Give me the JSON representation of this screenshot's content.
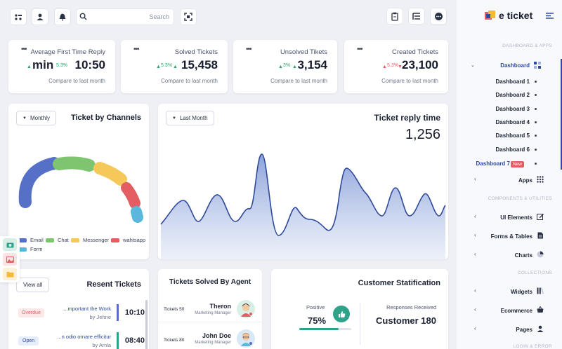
{
  "topbar": {
    "search_placeholder": "Search"
  },
  "brand": {
    "name": "e ticket"
  },
  "stats": [
    {
      "title": "Average First Time Reply",
      "value_prefix": "min",
      "value": "10:50",
      "change": "5.3%",
      "direction": "up",
      "compare": "Compare to last month"
    },
    {
      "title": "Solved Tickets",
      "value": "15,458",
      "change": "5.3%",
      "direction": "up",
      "compare": "Compare to last month"
    },
    {
      "title": "Unsolved Tikets",
      "value": "3,154",
      "change": "3%",
      "direction": "up",
      "compare": "Compare to last month"
    },
    {
      "title": "Created Tickets",
      "value": "23,100",
      "change": "5.3%",
      "direction": "down",
      "compare": "Compare to last month"
    }
  ],
  "channels": {
    "filter": "Monthly",
    "title": "Ticket by Channels",
    "legend": [
      "Email",
      "Chat",
      "Messenger",
      "wahtsapp",
      "Form"
    ],
    "colors": [
      "#5670c8",
      "#7fc46f",
      "#f5c85a",
      "#e35d62",
      "#5ab8dc"
    ]
  },
  "reply": {
    "filter": "Last Month",
    "title": "Ticket reply time",
    "value": "1,256"
  },
  "recent": {
    "view_all": "View all",
    "title": "Resent Tickets",
    "rows": [
      {
        "status": "Overdue",
        "subject": "...mportant the Work",
        "by": "by Jehne",
        "time": "10:10"
      },
      {
        "status": "Open",
        "subject": "...n odio ornare efficitur",
        "by": "by Amla",
        "time": "08:40"
      }
    ]
  },
  "agents": {
    "title": "Tickets Solved By Agent",
    "rows": [
      {
        "tickets": "Tickets 50",
        "name": "Theron",
        "role": "Marketing Manager"
      },
      {
        "tickets": "Tickets 80",
        "name": "John Doe",
        "role": "Marketing Manager"
      }
    ]
  },
  "satisfaction": {
    "title": "Customer Statification",
    "positive_label": "Positive",
    "positive_value": "75%",
    "positive_fill": 0.75,
    "responses_label": "Responses Received",
    "responses_value": "Customer 180"
  },
  "sidebar": {
    "section_dash": "DASHBOARD & APPS",
    "dashboard": "Dashboard",
    "subitems": [
      "Dashboard 1",
      "Dashboard 2",
      "Dashboard 3",
      "Dashboard 4",
      "Dashboard 5",
      "Dashboard 6",
      "Dashboard 7"
    ],
    "new_badge": "New",
    "apps": "Apps",
    "section_comp": "COMPONENTS & UTILITIES",
    "ui_elements": "UI Elements",
    "forms_tables": "Forms & Tables",
    "charts": "Charts",
    "section_coll": "COLLECTIONS",
    "widgets": "Widgets",
    "ecommerce": "Ecommerce",
    "pages": "Pages",
    "section_login": "LOGIN & ERROR"
  },
  "icons": [
    "apps-grid-icon",
    "user-icon",
    "bell-icon",
    "search-icon",
    "fullscreen-icon",
    "clipboard-icon",
    "list-icon",
    "chat-icon",
    "menu-icon"
  ]
}
